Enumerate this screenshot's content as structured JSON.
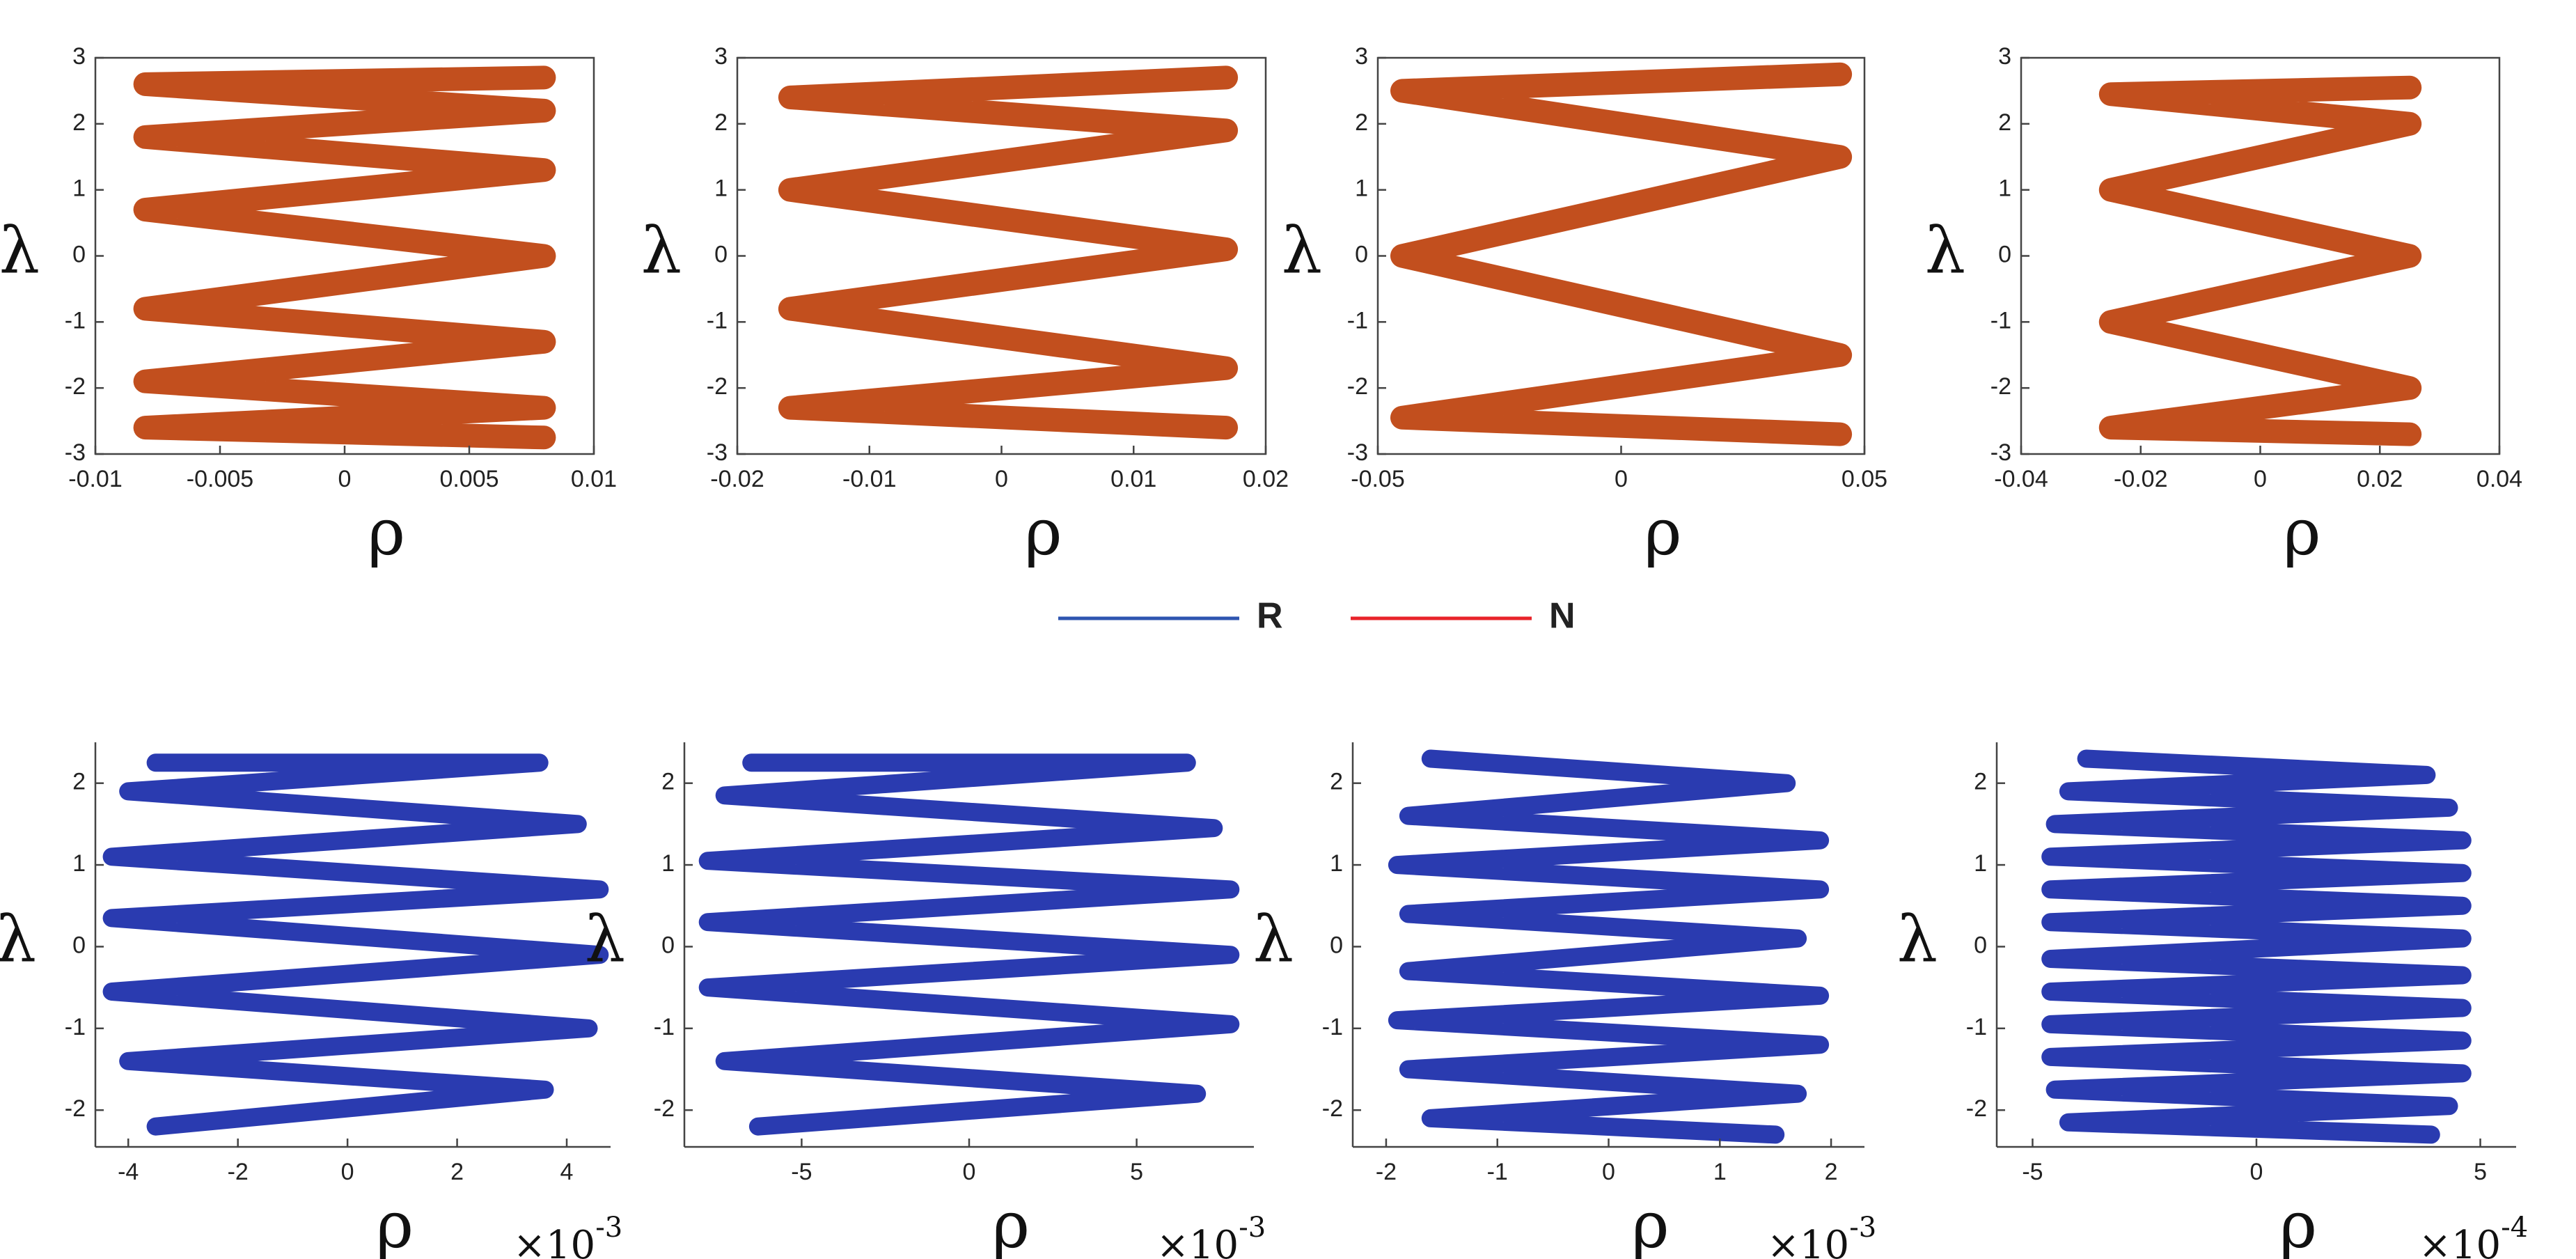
{
  "chart_data": [
    {
      "type": "line",
      "xlabel": "ρ",
      "ylabel": "λ",
      "xlim": [
        -0.01,
        0.01
      ],
      "ylim": [
        -3,
        3
      ],
      "xticks": [
        -0.01,
        -0.005,
        0,
        0.005,
        0.01
      ],
      "yticks": [
        -3,
        -2,
        -1,
        0,
        1,
        2,
        3
      ],
      "series": [
        {
          "color": "#c24f1e",
          "x": [
            0.008,
            -0.008,
            0.008,
            -0.008,
            0.008,
            -0.008,
            0.008,
            -0.008,
            0.008,
            -0.008,
            0.008,
            -0.008,
            0.008
          ],
          "y": [
            2.7,
            2.6,
            2.2,
            1.8,
            1.3,
            0.7,
            0.0,
            -0.8,
            -1.3,
            -1.9,
            -2.3,
            -2.6,
            -2.75
          ]
        }
      ]
    },
    {
      "type": "line",
      "xlabel": "ρ",
      "ylabel": "λ",
      "xlim": [
        -0.02,
        0.02
      ],
      "ylim": [
        -3,
        3
      ],
      "xticks": [
        -0.02,
        -0.01,
        0,
        0.01,
        0.02
      ],
      "yticks": [
        -3,
        -2,
        -1,
        0,
        1,
        2,
        3
      ],
      "series": [
        {
          "color": "#c24f1e",
          "x": [
            0.017,
            -0.016,
            0.017,
            -0.016,
            0.017,
            -0.016,
            0.017,
            -0.016,
            0.017
          ],
          "y": [
            2.7,
            2.4,
            1.9,
            1.0,
            0.1,
            -0.8,
            -1.7,
            -2.3,
            -2.6
          ]
        }
      ]
    },
    {
      "type": "line",
      "xlabel": "ρ",
      "ylabel": "λ",
      "xlim": [
        -0.05,
        0.05
      ],
      "ylim": [
        -3,
        3
      ],
      "xticks": [
        -0.05,
        0,
        0.05
      ],
      "yticks": [
        -3,
        -2,
        -1,
        0,
        1,
        2,
        3
      ],
      "series": [
        {
          "color": "#c24f1e",
          "x": [
            0.045,
            -0.045,
            0.045,
            -0.045,
            0.045,
            -0.045,
            0.045
          ],
          "y": [
            2.75,
            2.5,
            1.5,
            0.0,
            -1.5,
            -2.45,
            -2.7
          ]
        }
      ]
    },
    {
      "type": "line",
      "xlabel": "ρ",
      "ylabel": "λ",
      "xlim": [
        -0.04,
        0.04
      ],
      "ylim": [
        -3,
        3
      ],
      "xticks": [
        -0.04,
        -0.02,
        0,
        0.02,
        0.04
      ],
      "yticks": [
        -3,
        -2,
        -1,
        0,
        1,
        2,
        3
      ],
      "series": [
        {
          "color": "#c24f1e",
          "x": [
            0.025,
            -0.025,
            0.025,
            -0.025,
            0.025,
            -0.025,
            0.025,
            -0.025,
            0.025
          ],
          "y": [
            2.55,
            2.45,
            2.0,
            1.0,
            0.0,
            -1.0,
            -2.0,
            -2.6,
            -2.7
          ]
        }
      ]
    },
    {
      "type": "line",
      "xlabel": "ρ",
      "ylabel": "λ",
      "offset_base": "×10",
      "offset_exponent": "-3",
      "xlim": [
        -4.6,
        4.8
      ],
      "ylim": [
        -2.45,
        2.5
      ],
      "xticks": [
        -4,
        -2,
        0,
        2,
        4
      ],
      "yticks": [
        -2,
        -1,
        0,
        1,
        2
      ],
      "series": [
        {
          "color": "#2a3bb0",
          "x": [
            -3.5,
            3.5,
            -4.0,
            4.2,
            -4.3,
            4.6,
            -4.3,
            4.6,
            -4.3,
            4.4,
            -4.0,
            3.6,
            -3.5
          ],
          "y": [
            2.25,
            2.25,
            1.9,
            1.5,
            1.1,
            0.7,
            0.35,
            -0.1,
            -0.55,
            -1.0,
            -1.4,
            -1.75,
            -2.2
          ]
        }
      ]
    },
    {
      "type": "line",
      "xlabel": "ρ",
      "ylabel": "λ",
      "offset_base": "×10",
      "offset_exponent": "-3",
      "xlim": [
        -8.5,
        8.5
      ],
      "ylim": [
        -2.45,
        2.5
      ],
      "xticks": [
        -5,
        0,
        5
      ],
      "yticks": [
        -2,
        -1,
        0,
        1,
        2
      ],
      "series": [
        {
          "color": "#2a3bb0",
          "x": [
            -6.5,
            6.5,
            -7.3,
            7.3,
            -7.8,
            7.8,
            -7.8,
            7.8,
            -7.8,
            7.8,
            -7.3,
            6.8,
            -6.3
          ],
          "y": [
            2.25,
            2.25,
            1.85,
            1.45,
            1.05,
            0.7,
            0.3,
            -0.1,
            -0.5,
            -0.95,
            -1.4,
            -1.8,
            -2.2
          ]
        }
      ]
    },
    {
      "type": "line",
      "xlabel": "ρ",
      "ylabel": "λ",
      "offset_base": "×10",
      "offset_exponent": "-3",
      "xlim": [
        -2.3,
        2.3
      ],
      "ylim": [
        -2.45,
        2.5
      ],
      "xticks": [
        -2,
        -1,
        0,
        1,
        2
      ],
      "yticks": [
        -2,
        -1,
        0,
        1,
        2
      ],
      "series": [
        {
          "color": "#2a3bb0",
          "x": [
            -1.6,
            1.6,
            -1.8,
            1.9,
            -1.9,
            1.9,
            -1.8,
            1.7,
            -1.8,
            1.9,
            -1.9,
            1.9,
            -1.8,
            1.7,
            -1.6,
            1.5
          ],
          "y": [
            2.3,
            2.0,
            1.6,
            1.3,
            1.0,
            0.7,
            0.4,
            0.1,
            -0.3,
            -0.6,
            -0.9,
            -1.2,
            -1.5,
            -1.8,
            -2.1,
            -2.3
          ]
        }
      ]
    },
    {
      "type": "line",
      "xlabel": "ρ",
      "ylabel": "λ",
      "offset_base": "×10",
      "offset_exponent": "-4",
      "xlim": [
        -5.8,
        5.8
      ],
      "ylim": [
        -2.45,
        2.5
      ],
      "xticks": [
        -5,
        0,
        5
      ],
      "yticks": [
        -2,
        -1,
        0,
        1,
        2
      ],
      "series": [
        {
          "color": "#2a3bb0",
          "x": [
            -3.8,
            3.8,
            -4.2,
            4.3,
            -4.5,
            4.6,
            -4.6,
            4.6,
            -4.6,
            4.6,
            -4.6,
            4.6,
            -4.6,
            4.6,
            -4.6,
            4.6,
            -4.6,
            4.6,
            -4.6,
            4.6,
            -4.5,
            4.3,
            -4.2,
            3.9
          ],
          "y": [
            2.3,
            2.1,
            1.9,
            1.7,
            1.5,
            1.3,
            1.1,
            0.9,
            0.7,
            0.5,
            0.3,
            0.1,
            -0.15,
            -0.35,
            -0.55,
            -0.75,
            -0.95,
            -1.15,
            -1.35,
            -1.55,
            -1.75,
            -1.95,
            -2.15,
            -2.3
          ]
        }
      ]
    }
  ],
  "legend": [
    {
      "name": "R",
      "color": "#2e55b0"
    },
    {
      "name": "N",
      "color": "#e8232a"
    }
  ]
}
